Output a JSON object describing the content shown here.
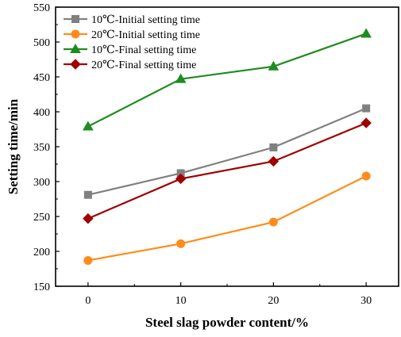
{
  "chart_data": {
    "type": "line",
    "xlabel": "Steel slag powder content/%",
    "ylabel": "Setting time/min",
    "x": [
      0,
      10,
      20,
      30
    ],
    "x_ticks": [
      "0",
      "10",
      "20",
      "30"
    ],
    "xlim": [
      -3.5,
      33.5
    ],
    "ylim": [
      150,
      550
    ],
    "y_ticks": [
      "150",
      "200",
      "250",
      "300",
      "350",
      "400",
      "450",
      "500",
      "550"
    ],
    "grid": false,
    "legend_position": "top-left",
    "series": [
      {
        "name": "10℃-Initial setting time",
        "color": "#808080",
        "marker": "square",
        "values": [
          281,
          312,
          349,
          405
        ]
      },
      {
        "name": "20℃-Initial setting time",
        "color": "#FF8C1A",
        "marker": "circle",
        "values": [
          187,
          211,
          242,
          308
        ]
      },
      {
        "name": "10℃-Final setting time",
        "color": "#1E8C1E",
        "marker": "triangle",
        "values": [
          379,
          447,
          465,
          512
        ]
      },
      {
        "name": "20℃-Final setting time",
        "color": "#A00000",
        "marker": "diamond",
        "values": [
          247,
          304,
          329,
          384
        ]
      }
    ]
  }
}
